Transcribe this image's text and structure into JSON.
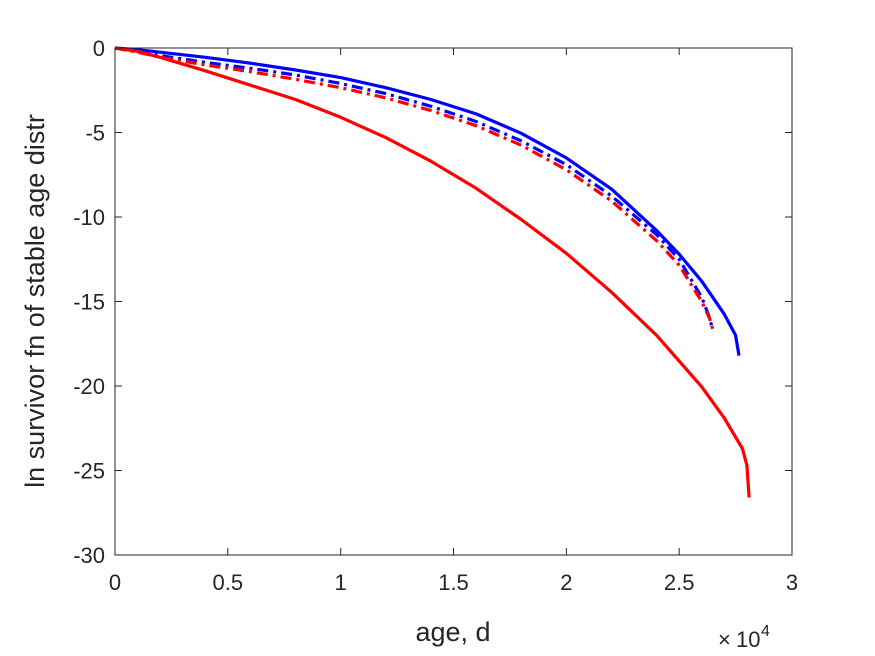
{
  "chart_data": {
    "type": "line",
    "title": "",
    "xlabel": "age, d",
    "ylabel": "ln survivor fn of stable age distr",
    "x_multiplier": {
      "base": "10",
      "exponent": "4"
    },
    "xlim": [
      0,
      30000
    ],
    "ylim": [
      -30,
      0
    ],
    "x_ticks": [
      0,
      5000,
      10000,
      15000,
      20000,
      25000,
      30000
    ],
    "x_tick_labels": [
      "0",
      "0.5",
      "1",
      "1.5",
      "2",
      "2.5",
      "3"
    ],
    "y_ticks": [
      0,
      -5,
      -10,
      -15,
      -20,
      -25,
      -30
    ],
    "y_tick_labels": [
      "0",
      "-5",
      "-10",
      "-15",
      "-20",
      "-25",
      "-30"
    ],
    "grid": false,
    "box": true,
    "series": [
      {
        "color": "#0000ff",
        "style": "solid",
        "x": [
          0,
          1000,
          2000,
          4000,
          6000,
          8000,
          10000,
          12000,
          14000,
          16000,
          18000,
          20000,
          22000,
          24000,
          25000,
          26000,
          27000,
          27500,
          27650
        ],
        "y": [
          0,
          -0.1,
          -0.25,
          -0.55,
          -0.9,
          -1.3,
          -1.75,
          -2.35,
          -3.05,
          -3.9,
          -5.05,
          -6.5,
          -8.35,
          -10.8,
          -12.2,
          -13.8,
          -15.75,
          -17.0,
          -18.2
        ]
      },
      {
        "color": "#0000ff",
        "style": "dashdot",
        "x": [
          0,
          1000,
          2000,
          4000,
          6000,
          8000,
          10000,
          12000,
          14000,
          16000,
          18000,
          20000,
          22000,
          24000,
          25000,
          26000,
          26300,
          26500
        ],
        "y": [
          0,
          -0.2,
          -0.45,
          -0.85,
          -1.2,
          -1.6,
          -2.1,
          -2.7,
          -3.45,
          -4.35,
          -5.5,
          -6.9,
          -8.75,
          -11.05,
          -12.5,
          -14.75,
          -15.8,
          -16.7
        ]
      },
      {
        "color": "#ff0000",
        "style": "dashdot",
        "x": [
          0,
          1000,
          2000,
          4000,
          6000,
          8000,
          10000,
          12000,
          14000,
          16000,
          18000,
          20000,
          22000,
          24000,
          25000,
          26000,
          26350,
          26550
        ],
        "y": [
          0,
          -0.25,
          -0.55,
          -1.0,
          -1.4,
          -1.85,
          -2.35,
          -2.95,
          -3.7,
          -4.6,
          -5.75,
          -7.2,
          -9.05,
          -11.4,
          -12.85,
          -15.0,
          -16.0,
          -16.9
        ]
      },
      {
        "color": "#ff0000",
        "style": "solid",
        "x": [
          0,
          1000,
          2000,
          4000,
          6000,
          8000,
          10000,
          12000,
          14000,
          16000,
          18000,
          20000,
          22000,
          24000,
          26000,
          27000,
          27800,
          28000,
          28100
        ],
        "y": [
          0,
          -0.2,
          -0.55,
          -1.35,
          -2.2,
          -3.05,
          -4.1,
          -5.3,
          -6.7,
          -8.3,
          -10.15,
          -12.15,
          -14.45,
          -17.0,
          -20.05,
          -21.9,
          -23.7,
          -24.7,
          -26.6
        ]
      }
    ]
  }
}
